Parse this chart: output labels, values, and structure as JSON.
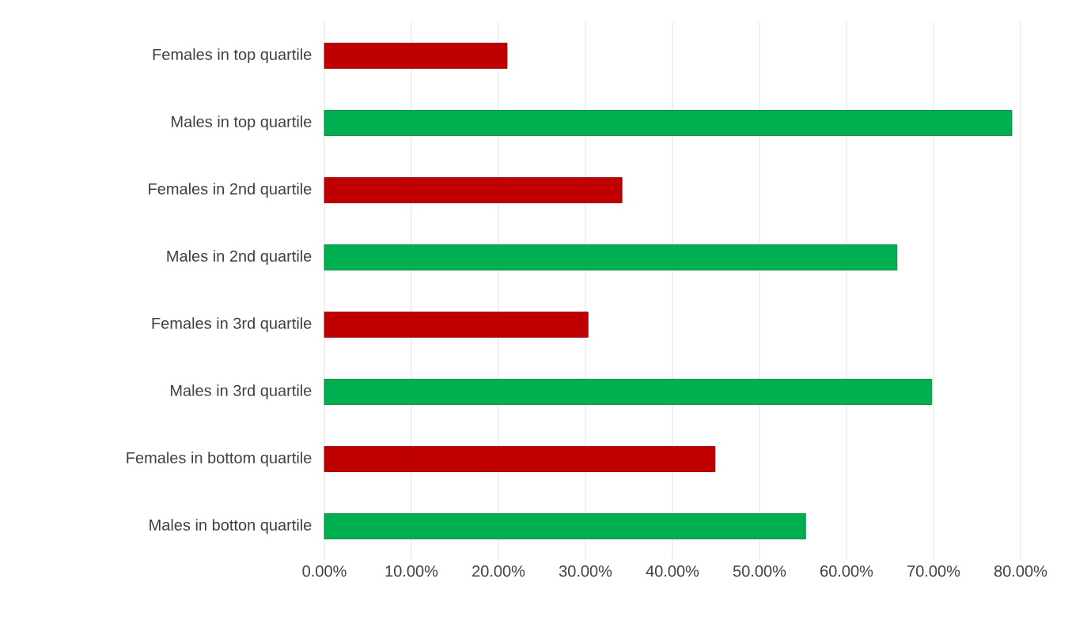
{
  "chart_data": {
    "type": "bar",
    "orientation": "horizontal",
    "categories": [
      "Females in top quartile",
      "Males in top quartile",
      "Females in 2nd quartile",
      "Males in 2nd quartile",
      "Females in 3rd quartile",
      "Males in 3rd quartile",
      "Females in bottom quartile",
      "Males in botton quartile"
    ],
    "values": [
      21.0,
      79.0,
      34.2,
      65.8,
      30.3,
      69.8,
      44.9,
      55.3
    ],
    "colors": [
      "#c00000",
      "#00b050",
      "#c00000",
      "#00b050",
      "#c00000",
      "#00b050",
      "#c00000",
      "#00b050"
    ],
    "xlim": [
      0,
      80
    ],
    "xticks": [
      {
        "value": 0,
        "label": "0.00%"
      },
      {
        "value": 10,
        "label": "10.00%"
      },
      {
        "value": 20,
        "label": "20.00%"
      },
      {
        "value": 30,
        "label": "30.00%"
      },
      {
        "value": 40,
        "label": "40.00%"
      },
      {
        "value": 50,
        "label": "50.00%"
      },
      {
        "value": 60,
        "label": "60.00%"
      },
      {
        "value": 70,
        "label": "70.00%"
      },
      {
        "value": 80,
        "label": "80.00%"
      }
    ],
    "grid": "x"
  }
}
